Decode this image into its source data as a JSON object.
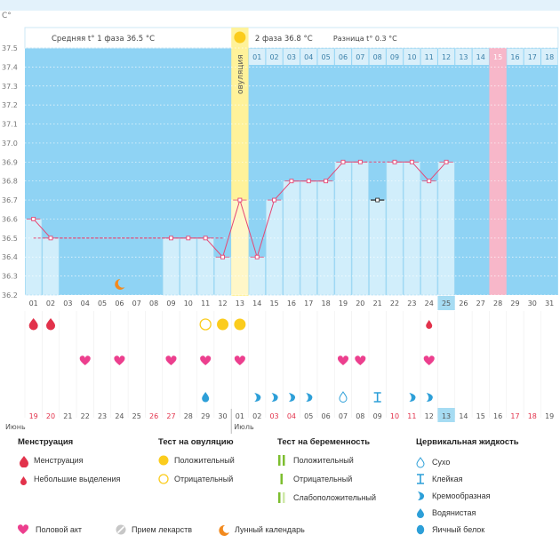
{
  "chart_data": {
    "type": "bbt-chart",
    "y_unit": "C°",
    "ylim": [
      36.2,
      37.5
    ],
    "y_ticks": [
      "37.5",
      "37.4",
      "37.3",
      "37.2",
      "37.1",
      "37.0",
      "36.9",
      "36.8",
      "36.7",
      "36.6",
      "36.5",
      "36.4",
      "36.3",
      "36.2"
    ],
    "phase1_label": "Средняя t° 1 фаза 36.5 °C",
    "phase2_label": "2 фаза 36.8 °C",
    "diff_label": "Разница t° 0.3 °C",
    "ovulation_label": "овуляция",
    "ovulation_day": 13,
    "coverline": 36.5,
    "cycle_days": [
      "01",
      "02",
      "03",
      "04",
      "05",
      "06",
      "07",
      "08",
      "09",
      "10",
      "11",
      "12",
      "13",
      "14",
      "15",
      "16",
      "17",
      "18",
      "19",
      "20",
      "21",
      "22",
      "23",
      "24",
      "25",
      "26",
      "27",
      "28",
      "29",
      "30",
      "31"
    ],
    "today_day": 25,
    "expected_period_day": 28,
    "dpo_labels": [
      "01",
      "02",
      "03",
      "04",
      "05",
      "06",
      "07",
      "08",
      "09",
      "10",
      "11",
      "12",
      "13",
      "14",
      "15",
      "16",
      "17",
      "18"
    ],
    "temperatures": [
      {
        "day": 1,
        "temp": 36.6
      },
      {
        "day": 2,
        "temp": 36.5
      },
      {
        "day": 9,
        "temp": 36.5
      },
      {
        "day": 10,
        "temp": 36.5
      },
      {
        "day": 11,
        "temp": 36.5
      },
      {
        "day": 12,
        "temp": 36.4
      },
      {
        "day": 13,
        "temp": 36.7
      },
      {
        "day": 14,
        "temp": 36.4
      },
      {
        "day": 15,
        "temp": 36.7
      },
      {
        "day": 16,
        "temp": 36.8
      },
      {
        "day": 17,
        "temp": 36.8
      },
      {
        "day": 18,
        "temp": 36.8
      },
      {
        "day": 19,
        "temp": 36.9
      },
      {
        "day": 20,
        "temp": 36.9
      },
      {
        "day": 21,
        "temp": 36.7,
        "excluded": true
      },
      {
        "day": 22,
        "temp": 36.9
      },
      {
        "day": 23,
        "temp": 36.9
      },
      {
        "day": 24,
        "temp": 36.8
      },
      {
        "day": 25,
        "temp": 36.9
      }
    ],
    "markers": [
      {
        "day": 6,
        "row": 0,
        "icon": "moon-icon"
      },
      {
        "day": 1,
        "row": 1,
        "icon": "menstruation-icon"
      },
      {
        "day": 2,
        "row": 1,
        "icon": "menstruation-icon"
      },
      {
        "day": 11,
        "row": 1,
        "icon": "ovulation-negative-icon"
      },
      {
        "day": 12,
        "row": 1,
        "icon": "ovulation-positive-icon"
      },
      {
        "day": 13,
        "row": 1,
        "icon": "ovulation-positive-icon"
      },
      {
        "day": 24,
        "row": 1,
        "icon": "spotting-icon"
      },
      {
        "day": 4,
        "row": 2,
        "icon": "heart-icon"
      },
      {
        "day": 6,
        "row": 2,
        "icon": "heart-icon"
      },
      {
        "day": 9,
        "row": 2,
        "icon": "heart-icon"
      },
      {
        "day": 11,
        "row": 2,
        "icon": "heart-icon"
      },
      {
        "day": 13,
        "row": 2,
        "icon": "heart-icon"
      },
      {
        "day": 19,
        "row": 2,
        "icon": "heart-icon"
      },
      {
        "day": 20,
        "row": 2,
        "icon": "heart-icon"
      },
      {
        "day": 24,
        "row": 2,
        "icon": "heart-icon"
      },
      {
        "day": 11,
        "row": 3,
        "icon": "watery-icon"
      },
      {
        "day": 14,
        "row": 3,
        "icon": "creamy-icon"
      },
      {
        "day": 15,
        "row": 3,
        "icon": "creamy-icon"
      },
      {
        "day": 16,
        "row": 3,
        "icon": "creamy-icon"
      },
      {
        "day": 17,
        "row": 3,
        "icon": "creamy-icon"
      },
      {
        "day": 19,
        "row": 3,
        "icon": "dry-icon"
      },
      {
        "day": 21,
        "row": 3,
        "icon": "sticky-icon"
      },
      {
        "day": 23,
        "row": 3,
        "icon": "creamy-icon"
      },
      {
        "day": 24,
        "row": 3,
        "icon": "creamy-icon"
      }
    ],
    "calendar_days": [
      "19",
      "20",
      "21",
      "22",
      "23",
      "24",
      "25",
      "26",
      "27",
      "28",
      "29",
      "30",
      "01",
      "02",
      "03",
      "04",
      "05",
      "06",
      "07",
      "08",
      "09",
      "10",
      "11",
      "12",
      "13",
      "14",
      "15",
      "16",
      "17",
      "18",
      "19"
    ],
    "red_calendar_indexes": [
      0,
      1,
      7,
      8,
      14,
      15,
      21,
      22,
      28,
      29
    ],
    "month_june": "Июнь",
    "month_july": "Июль"
  },
  "legend": {
    "menstruation": {
      "title": "Менструация",
      "items": [
        "Менструация",
        "Небольшие выделения"
      ]
    },
    "ovulation_test": {
      "title": "Тест на овуляцию",
      "items": [
        "Положительный",
        "Отрицательный"
      ]
    },
    "pregnancy_test": {
      "title": "Тест на беременность",
      "items": [
        "Положительный",
        "Отрицательный",
        "Слабоположительный"
      ]
    },
    "cervical_fluid": {
      "title": "Цервикальная жидкость",
      "items": [
        "Сухо",
        "Клейкая",
        "Кремообразная",
        "Водянистая",
        "Яичный белок"
      ]
    },
    "bottom": [
      "Половой акт",
      "Прием лекарств",
      "Лунный календарь"
    ]
  },
  "colors": {
    "sky": "#8fd3f4",
    "bar": "#d1eefb",
    "bar_edge": "#a9dcf4",
    "ovulation": "#fff29a",
    "ovulation_light": "#fff7c8",
    "period": "#f7b7c9",
    "today": "#a6dcf3",
    "line": "#e54875",
    "red": "#e2324b",
    "pink": "#ec3f8e",
    "yellow": "#fbcc1d",
    "blue": "#2d9fd8",
    "green": "#7dbe2f",
    "grey": "#aaaaaa"
  }
}
